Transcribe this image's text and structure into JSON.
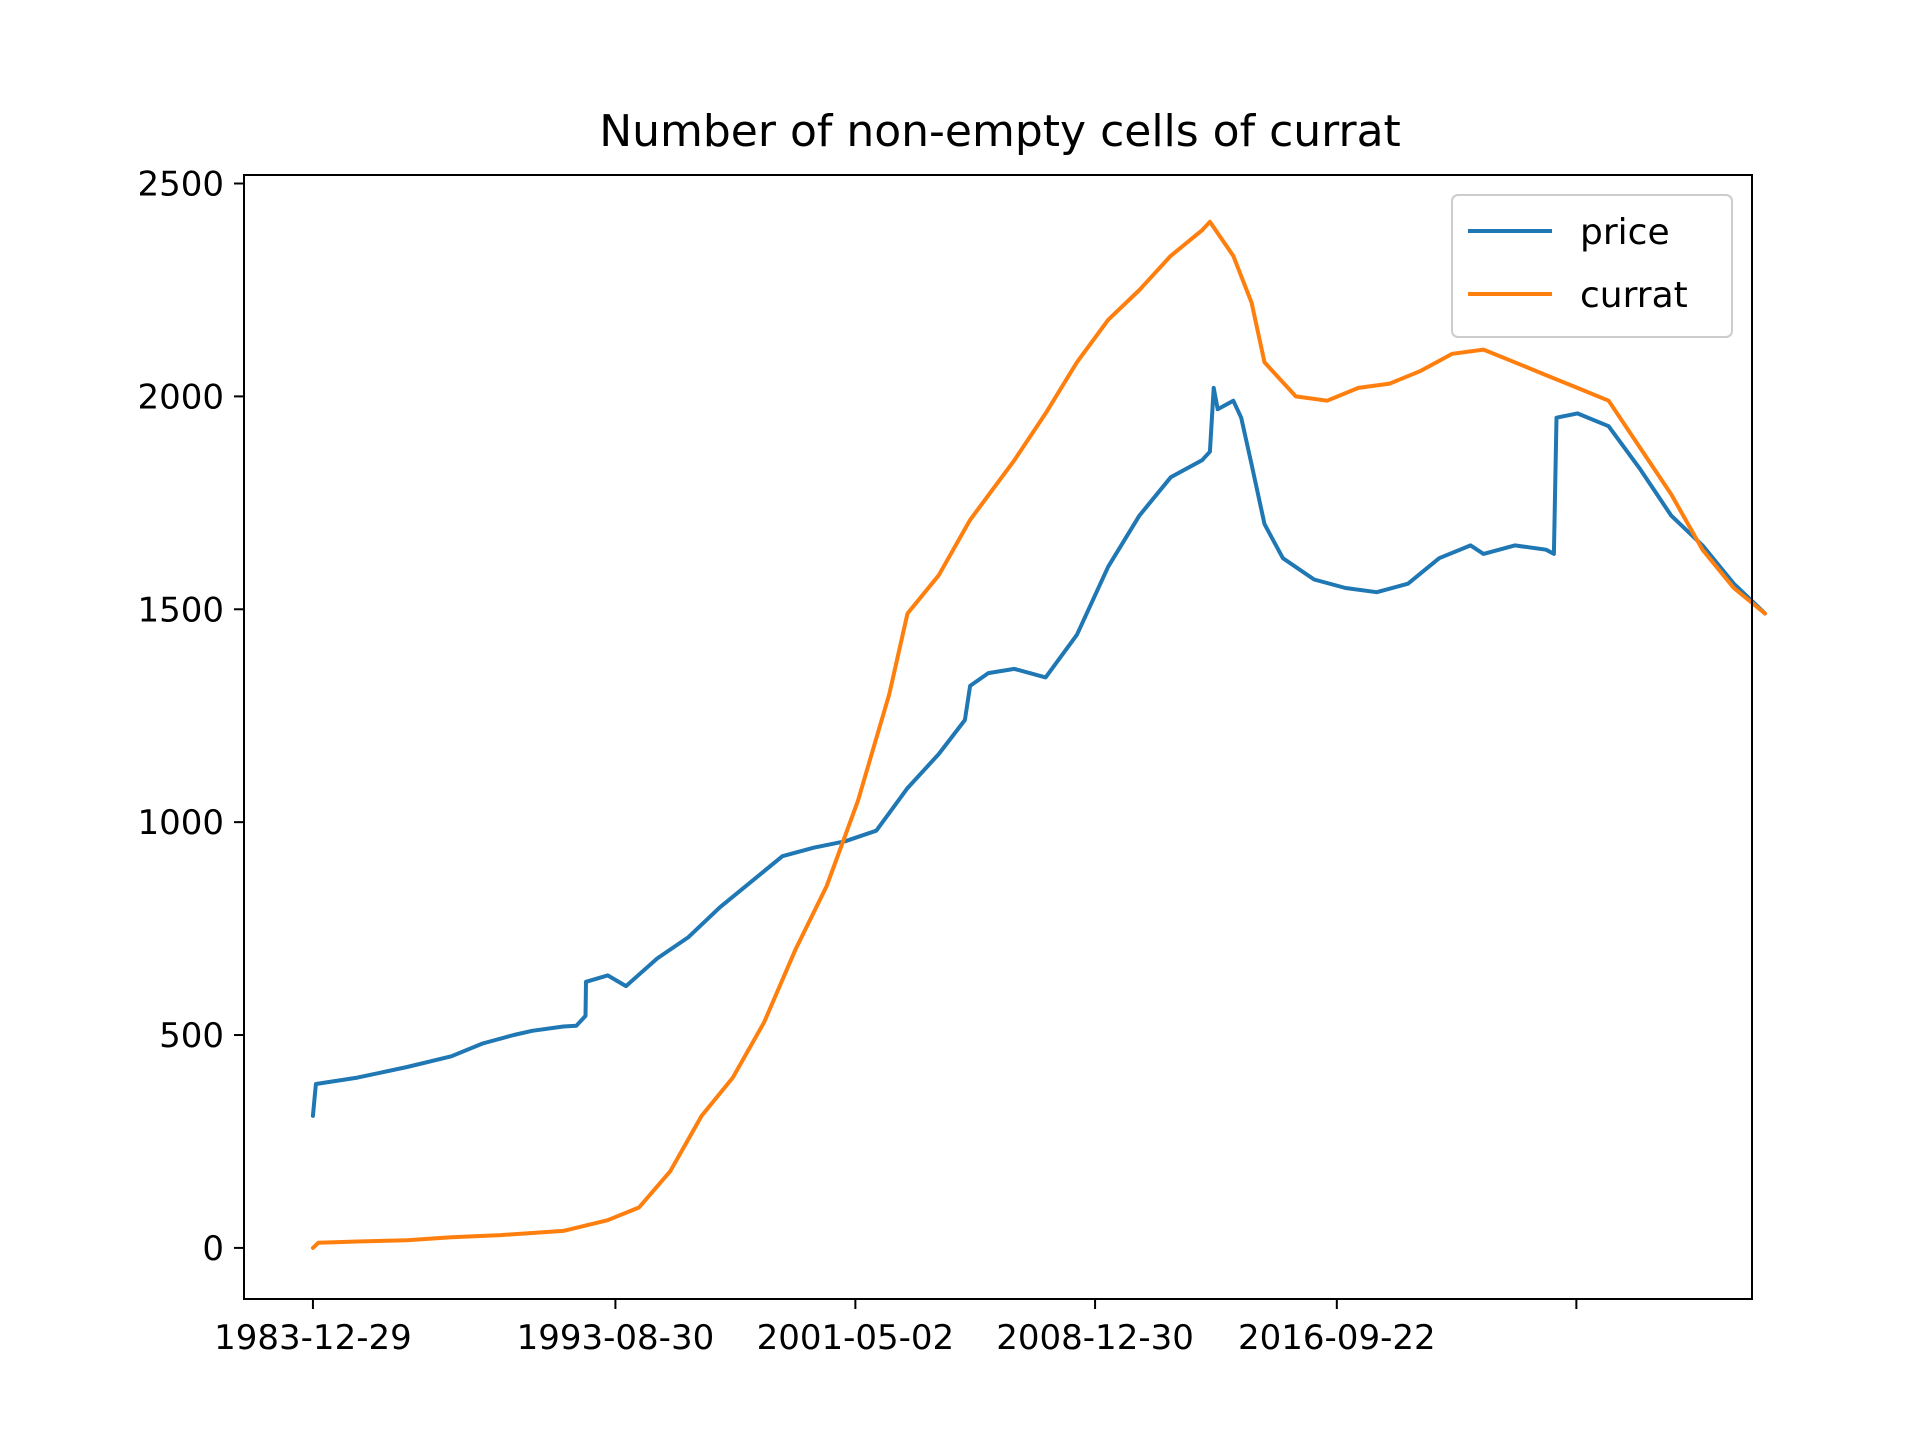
{
  "chart_data": {
    "type": "line",
    "title": "Number of non-empty cells of currat",
    "xlabel": "",
    "ylabel": "",
    "ylim": [
      -120,
      2520
    ],
    "xlim": [
      "1981-10-15",
      "2029-12-31"
    ],
    "grid": false,
    "legend_position": "top-right",
    "x_ticks": [
      {
        "date": "1983-12-29",
        "label": "1983-12-29"
      },
      {
        "date": "1993-08-30",
        "label": "1993-08-30"
      },
      {
        "date": "2001-05-02",
        "label": "2001-05-02"
      },
      {
        "date": "2008-12-30",
        "label": "2008-12-30"
      },
      {
        "date": "2016-09-22",
        "label": "2016-09-22"
      },
      {
        "date": "2024-05-20",
        "label": ""
      }
    ],
    "y_ticks": [
      0,
      500,
      1000,
      1500,
      2000,
      2500
    ],
    "series": [
      {
        "name": "price",
        "color": "#1f77b4",
        "points": [
          [
            "1983-12-29",
            310
          ],
          [
            "1984-02-01",
            385
          ],
          [
            "1985-06-01",
            400
          ],
          [
            "1987-01-01",
            425
          ],
          [
            "1988-06-01",
            450
          ],
          [
            "1989-06-01",
            480
          ],
          [
            "1990-06-01",
            500
          ],
          [
            "1991-01-01",
            510
          ],
          [
            "1992-01-01",
            520
          ],
          [
            "1992-06-01",
            522
          ],
          [
            "1992-09-15",
            545
          ],
          [
            "1992-09-20",
            625
          ],
          [
            "1993-06-01",
            640
          ],
          [
            "1994-01-01",
            615
          ],
          [
            "1995-01-01",
            680
          ],
          [
            "1996-01-01",
            730
          ],
          [
            "1997-01-01",
            800
          ],
          [
            "1998-01-01",
            860
          ],
          [
            "1999-01-01",
            920
          ],
          [
            "2000-01-01",
            940
          ],
          [
            "2001-01-01",
            955
          ],
          [
            "2002-01-01",
            980
          ],
          [
            "2003-01-01",
            1080
          ],
          [
            "2004-01-01",
            1160
          ],
          [
            "2004-11-01",
            1240
          ],
          [
            "2005-01-01",
            1320
          ],
          [
            "2005-08-01",
            1350
          ],
          [
            "2006-06-01",
            1360
          ],
          [
            "2007-06-01",
            1340
          ],
          [
            "2008-06-01",
            1440
          ],
          [
            "2009-06-01",
            1600
          ],
          [
            "2010-06-01",
            1720
          ],
          [
            "2011-06-01",
            1810
          ],
          [
            "2012-06-01",
            1850
          ],
          [
            "2012-09-01",
            1870
          ],
          [
            "2012-10-15",
            2020
          ],
          [
            "2012-12-01",
            1970
          ],
          [
            "2013-06-01",
            1990
          ],
          [
            "2013-09-01",
            1950
          ],
          [
            "2014-01-01",
            1840
          ],
          [
            "2014-06-01",
            1700
          ],
          [
            "2015-01-01",
            1620
          ],
          [
            "2016-01-01",
            1570
          ],
          [
            "2017-01-01",
            1550
          ],
          [
            "2018-01-01",
            1540
          ],
          [
            "2019-01-01",
            1560
          ],
          [
            "2020-01-01",
            1620
          ],
          [
            "2021-01-01",
            1650
          ],
          [
            "2021-06-01",
            1630
          ],
          [
            "2022-06-01",
            1650
          ],
          [
            "2023-06-01",
            1640
          ],
          [
            "2023-09-01",
            1630
          ],
          [
            "2023-10-01",
            1950
          ],
          [
            "2024-06-01",
            1960
          ],
          [
            "2025-06-01",
            1930
          ],
          [
            "2026-06-01",
            1830
          ],
          [
            "2027-06-01",
            1720
          ],
          [
            "2028-06-01",
            1650
          ],
          [
            "2029-06-01",
            1560
          ],
          [
            "2030-06-01",
            1490
          ]
        ]
      },
      {
        "name": "currat",
        "color": "#ff7f0e",
        "points": [
          [
            "1983-12-29",
            0
          ],
          [
            "1984-03-01",
            12
          ],
          [
            "1985-06-01",
            15
          ],
          [
            "1987-01-01",
            18
          ],
          [
            "1988-06-01",
            25
          ],
          [
            "1990-01-01",
            30
          ],
          [
            "1992-01-01",
            40
          ],
          [
            "1993-06-01",
            65
          ],
          [
            "1994-06-01",
            95
          ],
          [
            "1995-06-01",
            180
          ],
          [
            "1996-06-01",
            310
          ],
          [
            "1997-06-01",
            400
          ],
          [
            "1998-06-01",
            530
          ],
          [
            "1999-06-01",
            700
          ],
          [
            "2000-06-01",
            850
          ],
          [
            "2001-06-01",
            1050
          ],
          [
            "2002-06-01",
            1300
          ],
          [
            "2003-01-01",
            1490
          ],
          [
            "2004-01-01",
            1580
          ],
          [
            "2005-01-01",
            1710
          ],
          [
            "2006-06-01",
            1850
          ],
          [
            "2007-06-01",
            1960
          ],
          [
            "2008-06-01",
            2080
          ],
          [
            "2009-06-01",
            2180
          ],
          [
            "2010-06-01",
            2250
          ],
          [
            "2011-06-01",
            2330
          ],
          [
            "2012-06-01",
            2390
          ],
          [
            "2012-09-01",
            2410
          ],
          [
            "2013-06-01",
            2330
          ],
          [
            "2014-01-01",
            2220
          ],
          [
            "2014-06-01",
            2080
          ],
          [
            "2015-06-01",
            2000
          ],
          [
            "2016-06-01",
            1990
          ],
          [
            "2017-06-01",
            2020
          ],
          [
            "2018-06-01",
            2030
          ],
          [
            "2019-06-01",
            2060
          ],
          [
            "2020-06-01",
            2100
          ],
          [
            "2021-06-01",
            2110
          ],
          [
            "2022-06-01",
            2080
          ],
          [
            "2023-06-01",
            2050
          ],
          [
            "2024-06-01",
            2020
          ],
          [
            "2025-06-01",
            1990
          ],
          [
            "2026-06-01",
            1880
          ],
          [
            "2027-06-01",
            1770
          ],
          [
            "2028-06-01",
            1640
          ],
          [
            "2029-06-01",
            1550
          ],
          [
            "2030-06-01",
            1490
          ]
        ]
      }
    ]
  }
}
